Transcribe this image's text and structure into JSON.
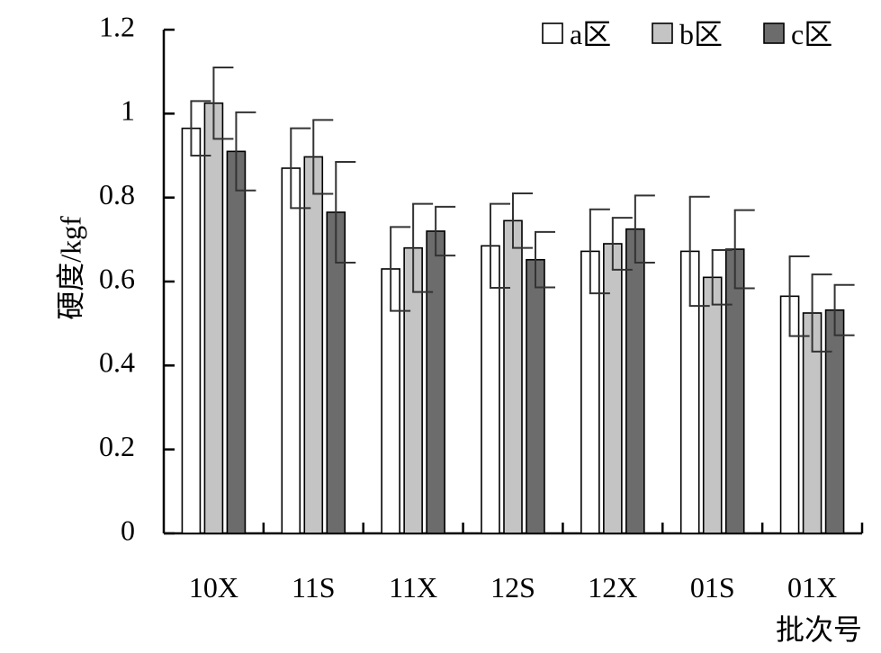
{
  "chart_data": {
    "type": "bar",
    "xlabel": "批次号",
    "ylabel": "硬度/kgf",
    "ylim": [
      0,
      1.2
    ],
    "yticks": [
      "0",
      "0.2",
      "0.4",
      "0.6",
      "0.8",
      "1",
      "1.2"
    ],
    "categories": [
      "10X",
      "11S",
      "11X",
      "12S",
      "12X",
      "01S",
      "01X"
    ],
    "series": [
      {
        "name": "a区",
        "color": "#ffffff",
        "values": [
          0.965,
          0.87,
          0.63,
          0.685,
          0.672,
          0.672,
          0.565
        ],
        "errors": [
          0.065,
          0.095,
          0.1,
          0.1,
          0.1,
          0.13,
          0.095
        ]
      },
      {
        "name": "b区",
        "color": "#c4c4c4",
        "values": [
          1.025,
          0.897,
          0.68,
          0.745,
          0.69,
          0.61,
          0.525
        ],
        "errors": [
          0.085,
          0.088,
          0.105,
          0.065,
          0.062,
          0.065,
          0.092
        ]
      },
      {
        "name": "c区",
        "color": "#6c6c6c",
        "values": [
          0.91,
          0.765,
          0.72,
          0.652,
          0.725,
          0.677,
          0.532
        ],
        "errors": [
          0.093,
          0.12,
          0.058,
          0.066,
          0.08,
          0.093,
          0.06
        ]
      }
    ],
    "legend_position": "top-right",
    "grid": false,
    "error_bars": true
  }
}
